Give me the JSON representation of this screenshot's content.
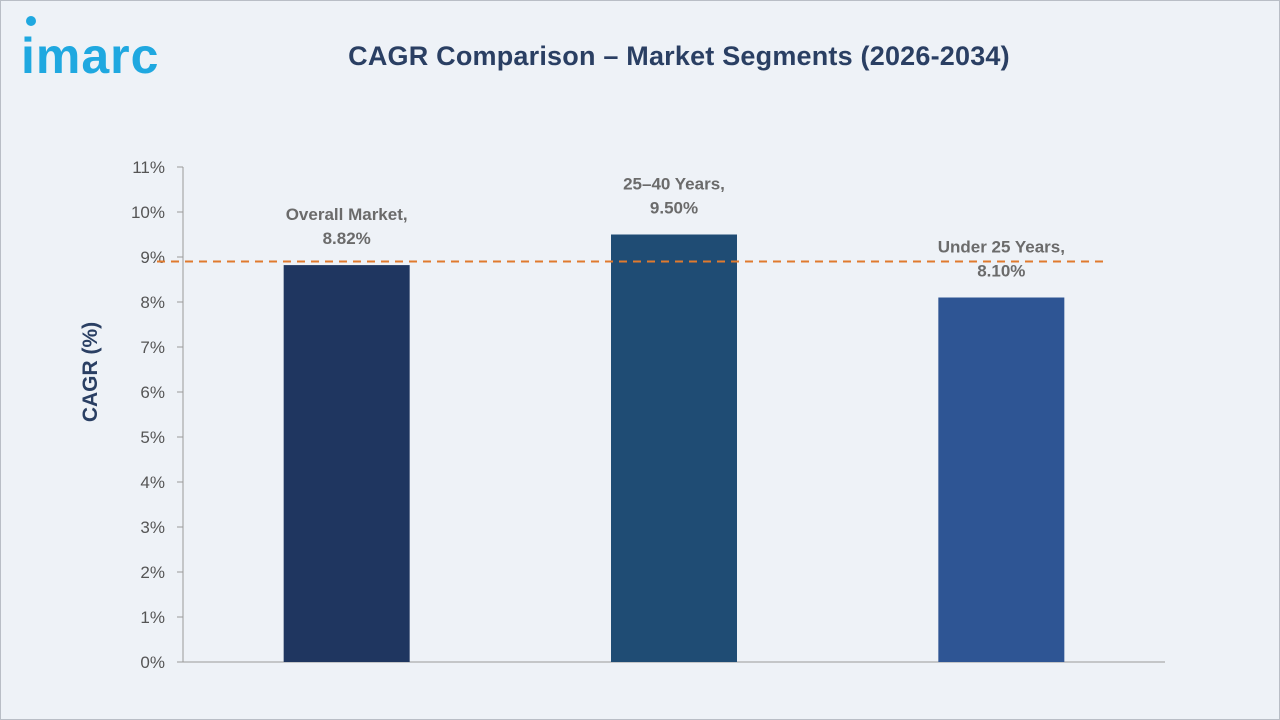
{
  "logo": {
    "text": "imarc",
    "color": "#1fa8e0"
  },
  "chart_data": {
    "type": "bar",
    "title": "CAGR Comparison – Market Segments (2026-2034)",
    "ylabel": "CAGR (%)",
    "xlabel": "",
    "ylim": [
      0,
      11
    ],
    "y_ticks": [
      0,
      1,
      2,
      3,
      4,
      5,
      6,
      7,
      8,
      9,
      10,
      11
    ],
    "y_tick_suffix": "%",
    "grid": false,
    "categories": [
      "Overall Market",
      "25–40 Years",
      "Under 25 Years"
    ],
    "values": [
      8.82,
      9.5,
      8.1
    ],
    "data_labels": [
      [
        "Overall Market,",
        "8.82%"
      ],
      [
        "25–40 Years,",
        "9.50%"
      ],
      [
        "Under 25 Years,",
        "8.10%"
      ]
    ],
    "bar_colors": [
      "#1f3660",
      "#1f4c74",
      "#2e5594"
    ],
    "reference_line": {
      "value": 8.9,
      "color": "#e07a2e",
      "style": "dashed"
    }
  }
}
